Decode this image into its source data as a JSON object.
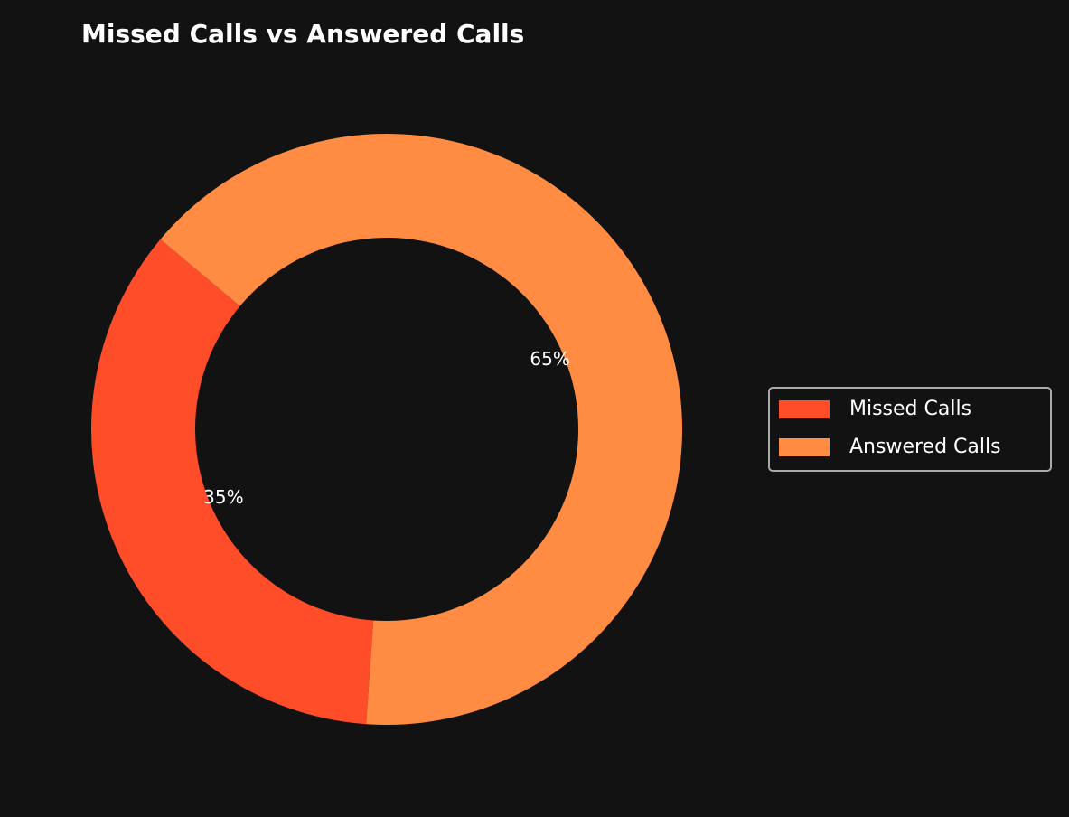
{
  "chart_data": {
    "type": "pie",
    "title": "Missed Calls vs Answered Calls",
    "categories": [
      "Missed Calls",
      "Answered Calls"
    ],
    "values": [
      35,
      65
    ],
    "value_labels": [
      "35%",
      "65%"
    ],
    "colors": [
      "#ff4c29",
      "#ff8c42"
    ],
    "legend": "right"
  }
}
